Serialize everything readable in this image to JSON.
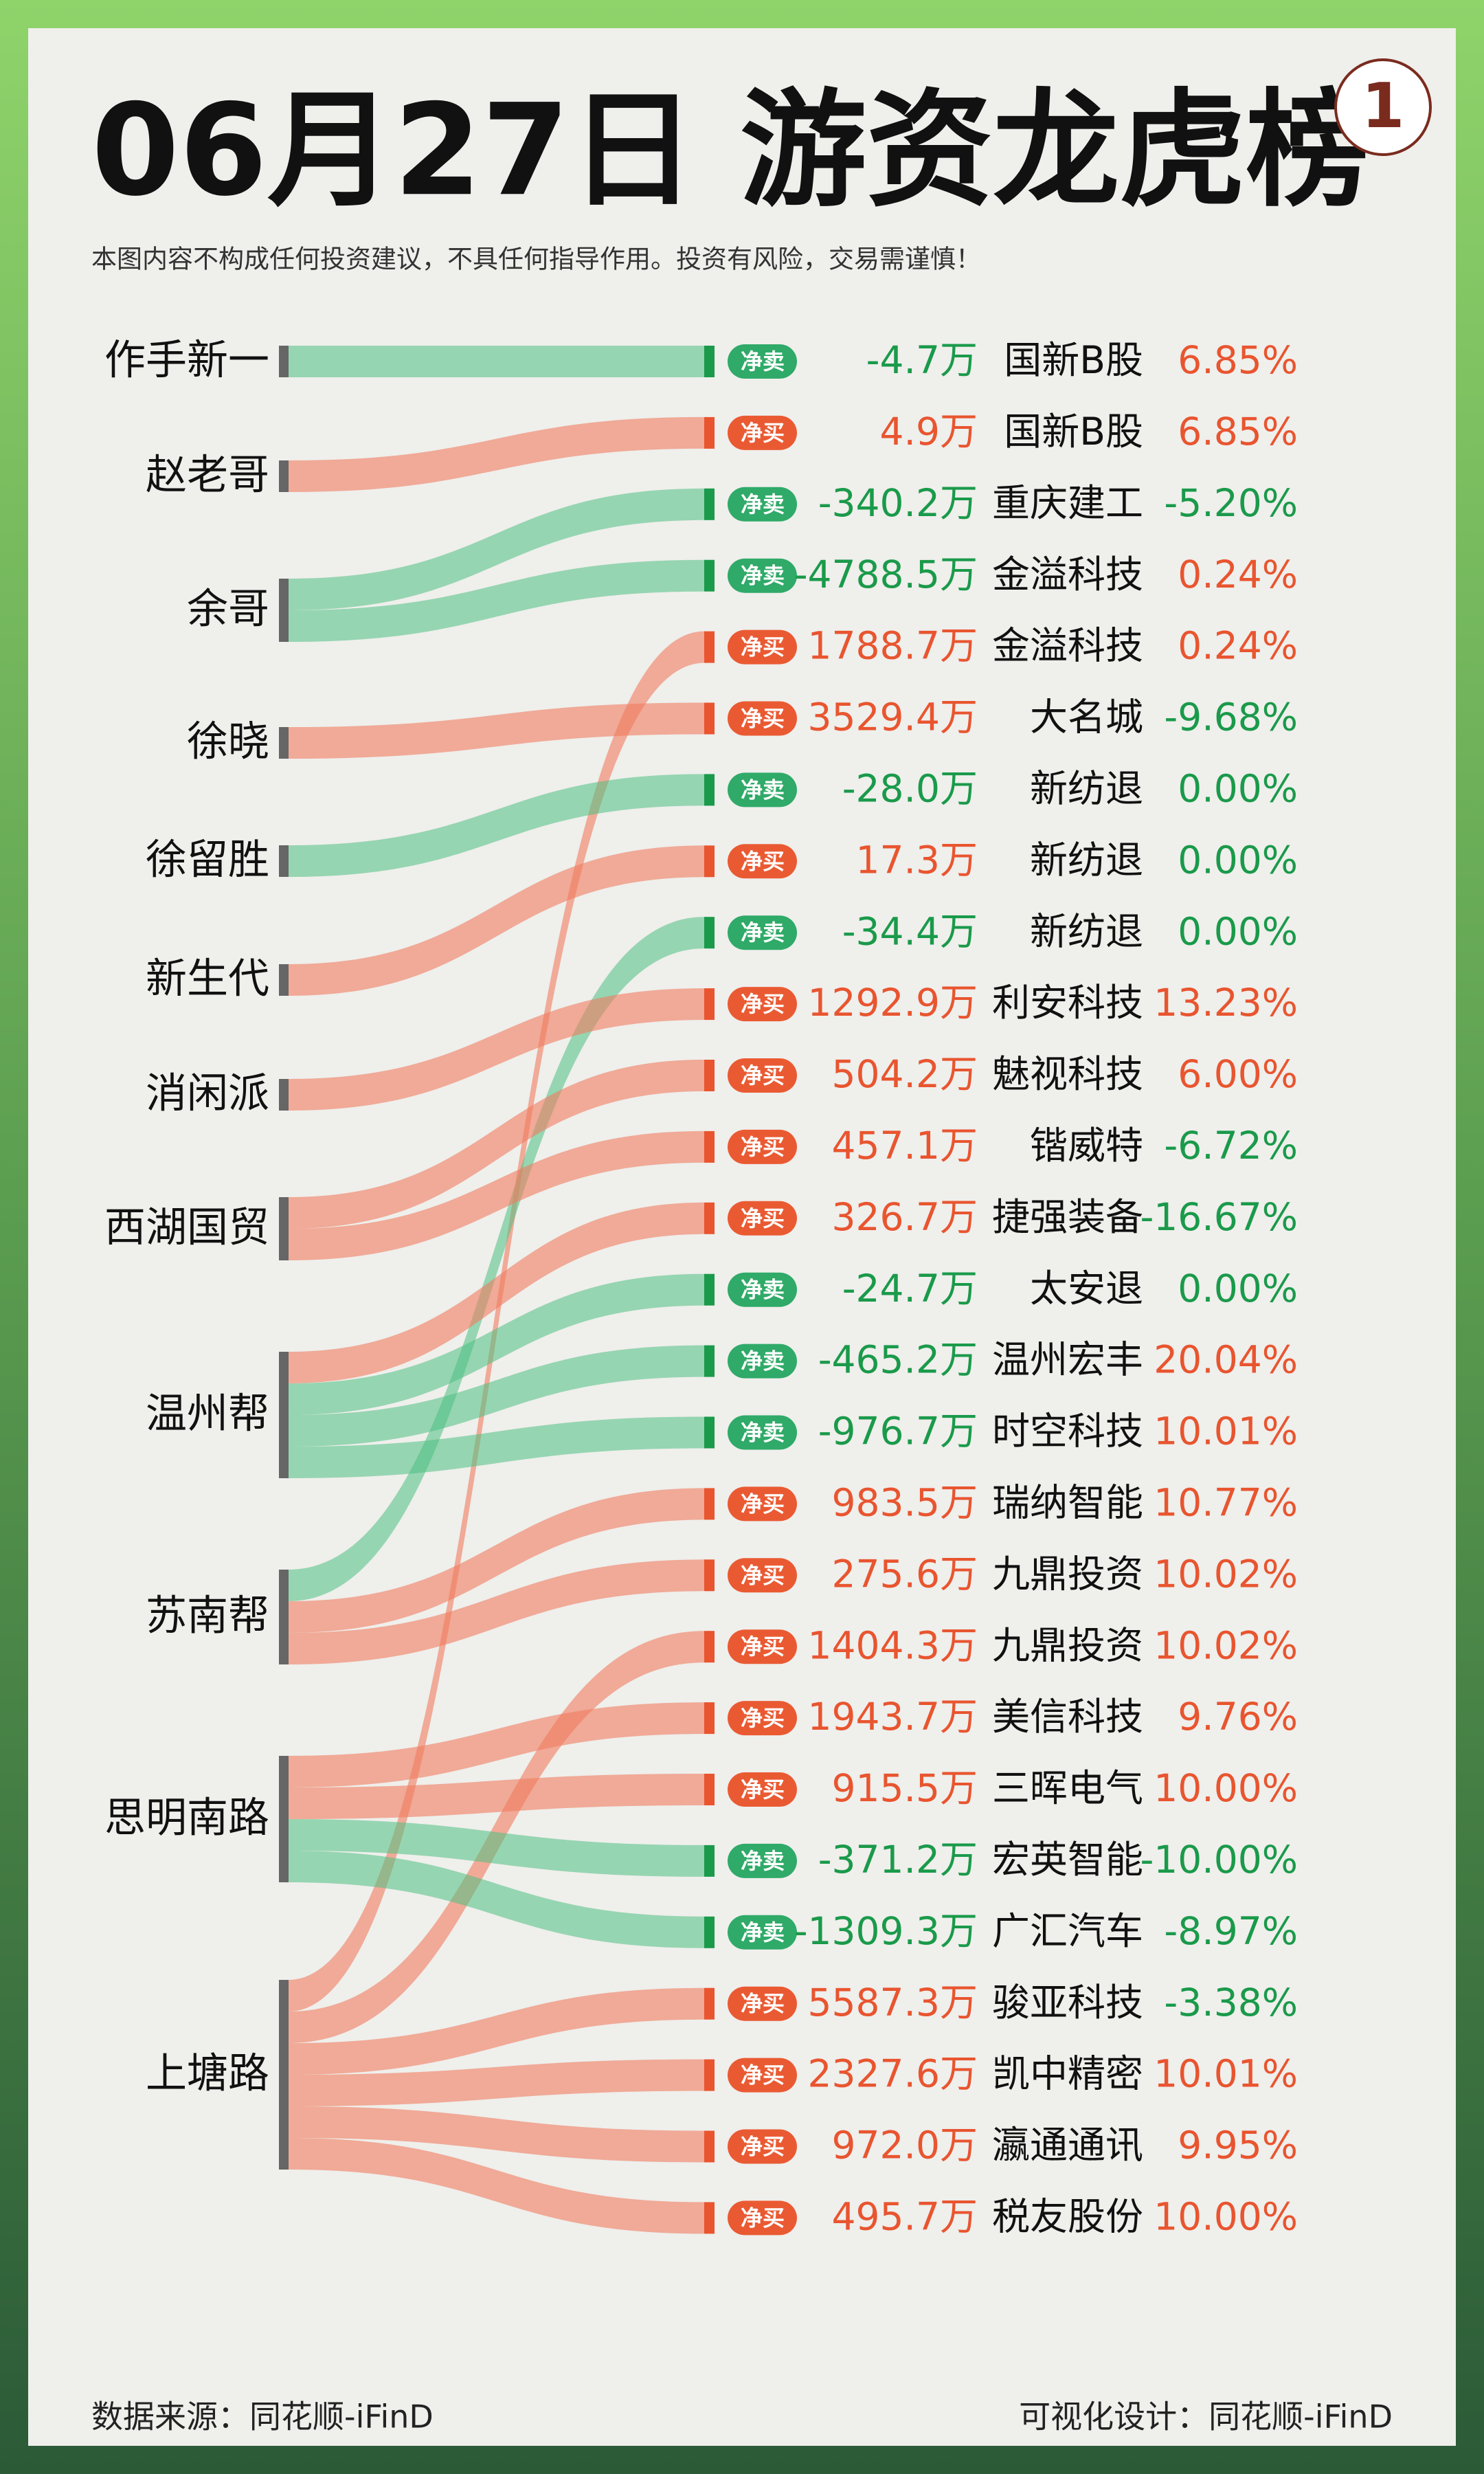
{
  "header": {
    "title": "06月27日 游资龙虎榜",
    "badge": "1",
    "disclaimer": "本图内容不构成任何投资建议，不具任何指导作用。投资有风险，交易需谨慎！"
  },
  "nodes": [
    {
      "label": "作手新一"
    },
    {
      "label": "赵老哥"
    },
    {
      "label": "余哥"
    },
    {
      "label": "徐晓"
    },
    {
      "label": "徐留胜"
    },
    {
      "label": "新生代"
    },
    {
      "label": "消闲派"
    },
    {
      "label": "西湖国贸"
    },
    {
      "label": "温州帮"
    },
    {
      "label": "苏南帮"
    },
    {
      "label": "思明南路"
    },
    {
      "label": "上塘路"
    }
  ],
  "rows": [
    {
      "from": "作手新一",
      "tag": "净卖",
      "amount": "-4.7万",
      "stock": "国新B股",
      "change": "6.85%"
    },
    {
      "from": "赵老哥",
      "tag": "净买",
      "amount": "4.9万",
      "stock": "国新B股",
      "change": "6.85%"
    },
    {
      "from": "余哥",
      "tag": "净卖",
      "amount": "-340.2万",
      "stock": "重庆建工",
      "change": "-5.20%"
    },
    {
      "from": "余哥",
      "tag": "净卖",
      "amount": "-4788.5万",
      "stock": "金溢科技",
      "change": "0.24%"
    },
    {
      "from": "上塘路",
      "tag": "净买",
      "amount": "1788.7万",
      "stock": "金溢科技",
      "change": "0.24%"
    },
    {
      "from": "徐晓",
      "tag": "净买",
      "amount": "3529.4万",
      "stock": "大名城",
      "change": "-9.68%"
    },
    {
      "from": "徐留胜",
      "tag": "净卖",
      "amount": "-28.0万",
      "stock": "新纺退",
      "change": "0.00%"
    },
    {
      "from": "新生代",
      "tag": "净买",
      "amount": "17.3万",
      "stock": "新纺退",
      "change": "0.00%"
    },
    {
      "from": "苏南帮",
      "tag": "净卖",
      "amount": "-34.4万",
      "stock": "新纺退",
      "change": "0.00%"
    },
    {
      "from": "消闲派",
      "tag": "净买",
      "amount": "1292.9万",
      "stock": "利安科技",
      "change": "13.23%"
    },
    {
      "from": "西湖国贸",
      "tag": "净买",
      "amount": "504.2万",
      "stock": "魅视科技",
      "change": "6.00%"
    },
    {
      "from": "西湖国贸",
      "tag": "净买",
      "amount": "457.1万",
      "stock": "锴威特",
      "change": "-6.72%"
    },
    {
      "from": "温州帮",
      "tag": "净买",
      "amount": "326.7万",
      "stock": "捷强装备",
      "change": "-16.67%"
    },
    {
      "from": "温州帮",
      "tag": "净卖",
      "amount": "-24.7万",
      "stock": "太安退",
      "change": "0.00%"
    },
    {
      "from": "温州帮",
      "tag": "净卖",
      "amount": "-465.2万",
      "stock": "温州宏丰",
      "change": "20.04%"
    },
    {
      "from": "温州帮",
      "tag": "净卖",
      "amount": "-976.7万",
      "stock": "时空科技",
      "change": "10.01%"
    },
    {
      "from": "苏南帮",
      "tag": "净买",
      "amount": "983.5万",
      "stock": "瑞纳智能",
      "change": "10.77%"
    },
    {
      "from": "苏南帮",
      "tag": "净买",
      "amount": "275.6万",
      "stock": "九鼎投资",
      "change": "10.02%"
    },
    {
      "from": "上塘路",
      "tag": "净买",
      "amount": "1404.3万",
      "stock": "九鼎投资",
      "change": "10.02%"
    },
    {
      "from": "思明南路",
      "tag": "净买",
      "amount": "1943.7万",
      "stock": "美信科技",
      "change": "9.76%"
    },
    {
      "from": "思明南路",
      "tag": "净买",
      "amount": "915.5万",
      "stock": "三晖电气",
      "change": "10.00%"
    },
    {
      "from": "思明南路",
      "tag": "净卖",
      "amount": "-371.2万",
      "stock": "宏英智能",
      "change": "-10.00%"
    },
    {
      "from": "思明南路",
      "tag": "净卖",
      "amount": "-1309.3万",
      "stock": "广汇汽车",
      "change": "-8.97%"
    },
    {
      "from": "上塘路",
      "tag": "净买",
      "amount": "5587.3万",
      "stock": "骏亚科技",
      "change": "-3.38%"
    },
    {
      "from": "上塘路",
      "tag": "净买",
      "amount": "2327.6万",
      "stock": "凯中精密",
      "change": "10.01%"
    },
    {
      "from": "上塘路",
      "tag": "净买",
      "amount": "972.0万",
      "stock": "瀛通通讯",
      "change": "9.95%"
    },
    {
      "from": "上塘路",
      "tag": "净买",
      "amount": "495.7万",
      "stock": "税友股份",
      "change": "10.00%"
    }
  ],
  "footer": {
    "source": "数据来源：同花顺-iFinD",
    "design": "可视化设计：同花顺-iFinD"
  }
}
